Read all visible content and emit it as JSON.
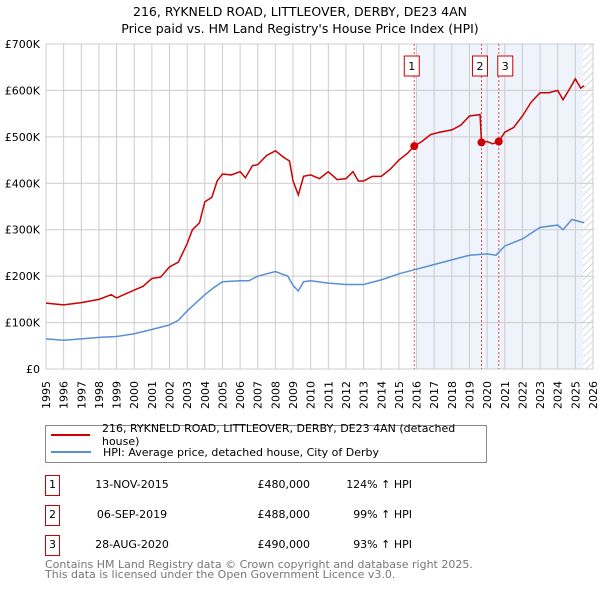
{
  "title": "216, RYKNELD ROAD, LITTLEOVER, DERBY, DE23 4AN",
  "subtitle": "Price paid vs. HM Land Registry's House Price Index (HPI)",
  "chart_data": {
    "type": "line",
    "xlim": [
      1995,
      2026
    ],
    "ylim": [
      0,
      700000
    ],
    "x_ticks": [
      "1995",
      "1996",
      "1997",
      "1998",
      "1999",
      "2000",
      "2001",
      "2002",
      "2003",
      "2004",
      "2005",
      "2006",
      "2007",
      "2008",
      "2009",
      "2010",
      "2011",
      "2012",
      "2013",
      "2014",
      "2015",
      "2016",
      "2017",
      "2018",
      "2019",
      "2020",
      "2021",
      "2022",
      "2023",
      "2024",
      "2025",
      "2026"
    ],
    "y_ticks": [
      {
        "v": 0,
        "label": "£0"
      },
      {
        "v": 100000,
        "label": "£100K"
      },
      {
        "v": 200000,
        "label": "£200K"
      },
      {
        "v": 300000,
        "label": "£300K"
      },
      {
        "v": 400000,
        "label": "£400K"
      },
      {
        "v": 500000,
        "label": "£500K"
      },
      {
        "v": 600000,
        "label": "£600K"
      },
      {
        "v": 700000,
        "label": "£700K"
      }
    ],
    "grid": true,
    "shaded_from": 2016.0,
    "hatched_from": 2025.45,
    "series": [
      {
        "name": "216, RYKNELD ROAD, LITTLEOVER, DERBY, DE23 4AN (detached house)",
        "color": "#cc0000",
        "x": [
          1995,
          1996,
          1997,
          1998,
          1998.7,
          1999,
          2000,
          2000.5,
          2001,
          2001.5,
          2002,
          2002.5,
          2003,
          2003.3,
          2003.7,
          2004,
          2004.4,
          2004.7,
          2005,
          2005.5,
          2006,
          2006.3,
          2006.7,
          2007,
          2007.5,
          2008,
          2008.5,
          2008.8,
          2009,
          2009.3,
          2009.6,
          2010,
          2010.5,
          2011,
          2011.5,
          2012,
          2012.4,
          2012.7,
          2013,
          2013.5,
          2014,
          2014.5,
          2015,
          2015.5,
          2015.87,
          2016.3,
          2016.8,
          2017.3,
          2018,
          2018.5,
          2019,
          2019.6,
          2019.68,
          2020,
          2020.3,
          2020.66,
          2021,
          2021.5,
          2022,
          2022.5,
          2023,
          2023.5,
          2024,
          2024.3,
          2024.7,
          2025,
          2025.3,
          2025.5
        ],
        "y": [
          142000,
          138000,
          143000,
          150000,
          160000,
          153000,
          170000,
          178000,
          195000,
          198000,
          220000,
          230000,
          270000,
          300000,
          315000,
          360000,
          370000,
          405000,
          420000,
          418000,
          425000,
          412000,
          438000,
          440000,
          460000,
          470000,
          455000,
          448000,
          405000,
          375000,
          415000,
          418000,
          410000,
          425000,
          408000,
          410000,
          425000,
          405000,
          405000,
          415000,
          415000,
          430000,
          450000,
          465000,
          480000,
          490000,
          505000,
          510000,
          515000,
          525000,
          545000,
          548000,
          488000,
          490000,
          485000,
          490000,
          510000,
          520000,
          545000,
          575000,
          595000,
          595000,
          600000,
          580000,
          605000,
          625000,
          605000,
          610000
        ]
      },
      {
        "name": "HPI: Average price, detached house, City of Derby",
        "color": "#5b8fd4",
        "x": [
          1995,
          1996,
          1997,
          1998,
          1999,
          2000,
          2001,
          2002,
          2002.5,
          2003,
          2004,
          2004.5,
          2005,
          2006,
          2006.5,
          2007,
          2008,
          2008.7,
          2009,
          2009.3,
          2009.6,
          2010,
          2011,
          2012,
          2013,
          2014,
          2015,
          2016,
          2017,
          2018,
          2019,
          2020,
          2020.5,
          2021,
          2022,
          2023,
          2024,
          2024.3,
          2024.8,
          2025.5
        ],
        "y": [
          65000,
          62000,
          65000,
          68000,
          70000,
          76000,
          85000,
          95000,
          105000,
          125000,
          160000,
          175000,
          188000,
          190000,
          190000,
          200000,
          210000,
          200000,
          180000,
          168000,
          188000,
          190000,
          185000,
          182000,
          182000,
          192000,
          205000,
          215000,
          225000,
          235000,
          245000,
          248000,
          245000,
          265000,
          280000,
          305000,
          310000,
          300000,
          322000,
          315000
        ]
      }
    ],
    "sales": [
      {
        "label": "1",
        "x": 2015.87,
        "y": 480000,
        "date": "13-NOV-2015",
        "price": "£480,000",
        "hpi": "124% ↑ HPI"
      },
      {
        "label": "2",
        "x": 2019.68,
        "y": 488000,
        "date": "06-SEP-2019",
        "price": "£488,000",
        "hpi": "99% ↑ HPI"
      },
      {
        "label": "3",
        "x": 2020.66,
        "y": 490000,
        "date": "28-AUG-2020",
        "price": "£490,000",
        "hpi": "93% ↑ HPI"
      }
    ]
  },
  "footer": {
    "line1": "Contains HM Land Registry data © Crown copyright and database right 2025.",
    "line2": "This data is licensed under the Open Government Licence v3.0."
  }
}
